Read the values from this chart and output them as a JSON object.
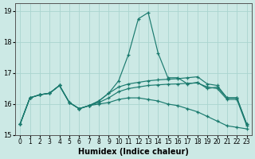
{
  "xlabel": "Humidex (Indice chaleur)",
  "xlim": [
    -0.5,
    23.5
  ],
  "ylim": [
    15.0,
    19.25
  ],
  "yticks": [
    15,
    16,
    17,
    18,
    19
  ],
  "xticks": [
    0,
    1,
    2,
    3,
    4,
    5,
    6,
    7,
    8,
    9,
    10,
    11,
    12,
    13,
    14,
    15,
    16,
    17,
    18,
    19,
    20,
    21,
    22,
    23
  ],
  "background_color": "#cce9e5",
  "grid_color": "#aad4cf",
  "line_color": "#1a7a6e",
  "line1": [
    15.35,
    16.2,
    16.3,
    16.35,
    16.6,
    16.05,
    15.85,
    15.95,
    16.1,
    16.35,
    16.75,
    17.6,
    18.75,
    18.95,
    17.65,
    16.85,
    16.85,
    16.65,
    16.7,
    16.5,
    16.55,
    16.2,
    16.2,
    15.35
  ],
  "line2": [
    15.35,
    16.2,
    16.3,
    16.35,
    16.6,
    16.05,
    15.85,
    15.95,
    16.1,
    16.35,
    16.55,
    16.65,
    16.7,
    16.75,
    16.78,
    16.8,
    16.82,
    16.85,
    16.88,
    16.65,
    16.6,
    16.2,
    16.2,
    15.35
  ],
  "line3": [
    15.35,
    16.2,
    16.3,
    16.35,
    16.6,
    16.05,
    15.85,
    15.95,
    16.05,
    16.2,
    16.4,
    16.5,
    16.55,
    16.6,
    16.62,
    16.64,
    16.65,
    16.67,
    16.68,
    16.55,
    16.5,
    16.15,
    16.15,
    15.3
  ],
  "line4": [
    15.35,
    16.2,
    16.3,
    16.35,
    16.6,
    16.05,
    15.85,
    15.95,
    16.0,
    16.05,
    16.15,
    16.2,
    16.2,
    16.15,
    16.1,
    16.0,
    15.95,
    15.85,
    15.75,
    15.6,
    15.45,
    15.3,
    15.25,
    15.2
  ]
}
